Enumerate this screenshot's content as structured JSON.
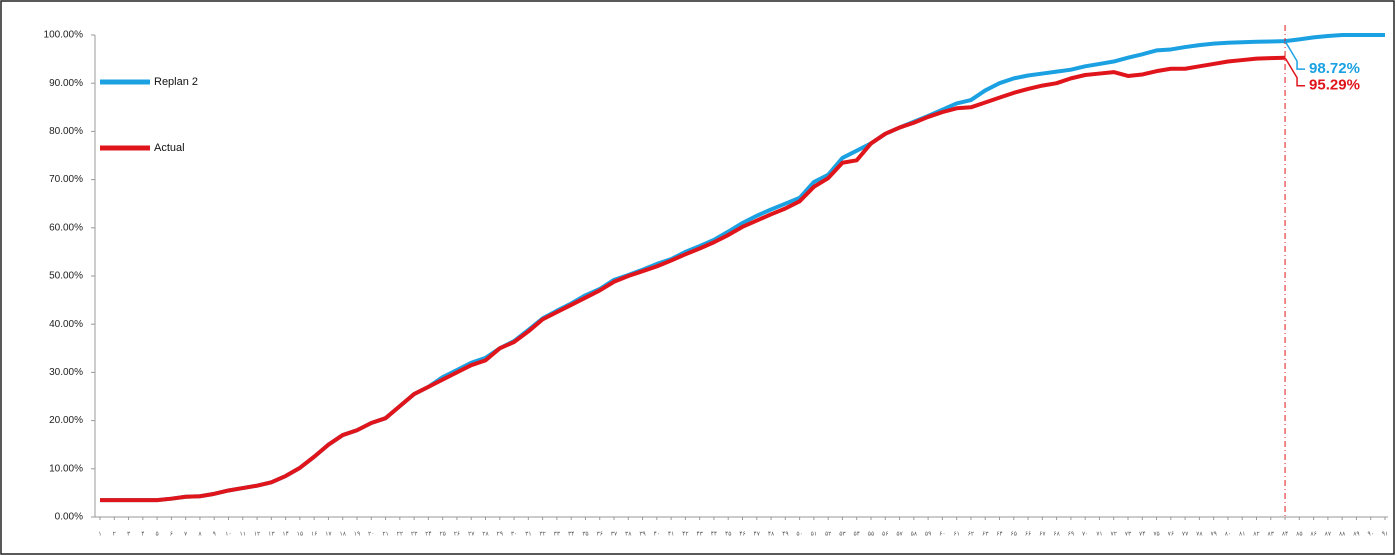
{
  "chart_data": {
    "type": "line",
    "categories": [
      "۱",
      "۲",
      "۳",
      "۴",
      "۵",
      "۶",
      "۷",
      "۸",
      "۹",
      "۱۰",
      "۱۱",
      "۱۲",
      "۱۳",
      "۱۴",
      "۱۵",
      "۱۶",
      "۱۷",
      "۱۸",
      "۱۹",
      "۲۰",
      "۲۱",
      "۲۲",
      "۲۳",
      "۲۴",
      "۲۵",
      "۲۶",
      "۲۷",
      "۲۸",
      "۲۹",
      "۳۰",
      "۳۱",
      "۳۲",
      "۳۳",
      "۳۴",
      "۳۵",
      "۳۶",
      "۳۷",
      "۳۸",
      "۳۹",
      "۴۰",
      "۴۱",
      "۴۲",
      "۴۳",
      "۴۴",
      "۴۵",
      "۴۶",
      "۴۷",
      "۴۸",
      "۴۹",
      "۵۰",
      "۵۱",
      "۵۲",
      "۵۳",
      "۵۴",
      "۵۵",
      "۵۶",
      "۵۷",
      "۵۸",
      "۵۹",
      "۶۰",
      "۶۱",
      "۶۲",
      "۶۳",
      "۶۴",
      "۶۵",
      "۶۶",
      "۶۷",
      "۶۸",
      "۶۹",
      "۷۰",
      "۷۱",
      "۷۲",
      "۷۳",
      "۷۴",
      "۷۵",
      "۷۶",
      "۷۷",
      "۷۸",
      "۷۹",
      "۸۰",
      "۸۱",
      "۸۲",
      "۸۳",
      "۸۴",
      "۸۵",
      "۸۶",
      "۸۷",
      "۸۸",
      "۸۹",
      "۹۰",
      "۹۱"
    ],
    "series": [
      {
        "name": "Replan 2",
        "color": "#1ba1e2",
        "values": [
          3.5,
          3.5,
          3.5,
          3.5,
          3.5,
          3.8,
          4.2,
          4.3,
          4.8,
          5.5,
          6,
          6.5,
          7.2,
          8.5,
          10.2,
          12.5,
          15,
          17,
          18,
          19.5,
          20.5,
          23,
          25.5,
          27,
          29,
          30.5,
          32,
          33,
          35,
          36.5,
          38.8,
          41.2,
          42.8,
          44.3,
          46,
          47.3,
          49.2,
          50.2,
          51.3,
          52.5,
          53.5,
          55,
          56.2,
          57.5,
          59.2,
          61,
          62.5,
          63.8,
          65,
          66.2,
          69.5,
          71,
          74.5,
          76,
          77.5,
          79.5,
          80.8,
          82,
          83.2,
          84.5,
          85.8,
          86.5,
          88.5,
          90,
          91,
          91.6,
          92,
          92.4,
          92.8,
          93.5,
          94,
          94.5,
          95.3,
          96,
          96.8,
          97,
          97.5,
          97.9,
          98.2,
          98.4,
          98.5,
          98.6,
          98.65,
          98.72,
          99.1,
          99.5,
          99.8,
          100,
          100,
          100,
          100
        ],
        "value_labels": [
          null,
          null,
          null,
          null,
          null,
          null,
          null,
          null,
          null,
          null,
          null,
          null,
          null,
          null,
          null,
          null,
          null,
          null,
          null,
          null,
          null,
          null,
          null,
          null,
          null,
          null,
          null,
          null,
          null,
          null,
          null,
          null,
          null,
          null,
          null,
          null,
          null,
          null,
          null,
          null,
          null,
          null,
          null,
          null,
          null,
          null,
          null,
          null,
          null,
          null,
          null,
          null,
          null,
          null,
          null,
          null,
          null,
          null,
          null,
          null,
          null,
          null,
          null,
          null,
          null,
          null,
          null,
          null,
          null,
          null,
          null,
          null,
          null,
          null,
          null,
          null,
          null,
          null,
          null,
          null,
          null,
          null,
          null,
          "98.72%",
          null,
          null,
          null,
          null,
          null,
          null,
          null
        ]
      },
      {
        "name": "Actual",
        "color": "#e0151b",
        "values": [
          3.5,
          3.5,
          3.5,
          3.5,
          3.5,
          3.8,
          4.2,
          4.3,
          4.8,
          5.5,
          6,
          6.5,
          7.2,
          8.5,
          10.2,
          12.5,
          15,
          17,
          18,
          19.5,
          20.5,
          23,
          25.5,
          27,
          28.5,
          30,
          31.5,
          32.5,
          35,
          36.3,
          38.5,
          41,
          42.5,
          44,
          45.5,
          47,
          48.8,
          50,
          51,
          52,
          53.2,
          54.5,
          55.7,
          57,
          58.5,
          60.2,
          61.5,
          62.8,
          64,
          65.5,
          68.5,
          70.3,
          73.5,
          74,
          77.5,
          79.5,
          80.8,
          81.8,
          83,
          84,
          84.8,
          85,
          86,
          87,
          88,
          88.8,
          89.5,
          90,
          91,
          91.7,
          92,
          92.3,
          91.5,
          91.8,
          92.5,
          93,
          93,
          93.5,
          94,
          94.5,
          94.8,
          95.1,
          95.2,
          95.29,
          null,
          null,
          null,
          null,
          null,
          null,
          null
        ],
        "value_labels": [
          null,
          null,
          null,
          null,
          null,
          null,
          null,
          null,
          null,
          null,
          null,
          null,
          null,
          null,
          null,
          null,
          null,
          null,
          null,
          null,
          null,
          null,
          null,
          null,
          null,
          null,
          null,
          null,
          null,
          null,
          null,
          null,
          null,
          null,
          null,
          null,
          null,
          null,
          null,
          null,
          null,
          null,
          null,
          null,
          null,
          null,
          null,
          null,
          null,
          null,
          null,
          null,
          null,
          null,
          null,
          null,
          null,
          null,
          null,
          null,
          null,
          null,
          null,
          null,
          null,
          null,
          null,
          null,
          null,
          null,
          null,
          null,
          null,
          null,
          null,
          null,
          null,
          null,
          null,
          null,
          null,
          null,
          null,
          "95.29%",
          null,
          null,
          null,
          null,
          null,
          null,
          null
        ]
      }
    ],
    "ylim": [
      0,
      100
    ],
    "yticks": [
      {
        "value": 0,
        "label": "0.00%"
      },
      {
        "value": 10,
        "label": "10.00%"
      },
      {
        "value": 20,
        "label": "20.00%"
      },
      {
        "value": 30,
        "label": "30.00%"
      },
      {
        "value": 40,
        "label": "40.00%"
      },
      {
        "value": 50,
        "label": "50.00%"
      },
      {
        "value": 60,
        "label": "60.00%"
      },
      {
        "value": 70,
        "label": "70.00%"
      },
      {
        "value": 80,
        "label": "80.00%"
      },
      {
        "value": 90,
        "label": "90.00%"
      },
      {
        "value": 100,
        "label": "100.00%"
      }
    ],
    "grid": false,
    "legend": "top-left"
  }
}
